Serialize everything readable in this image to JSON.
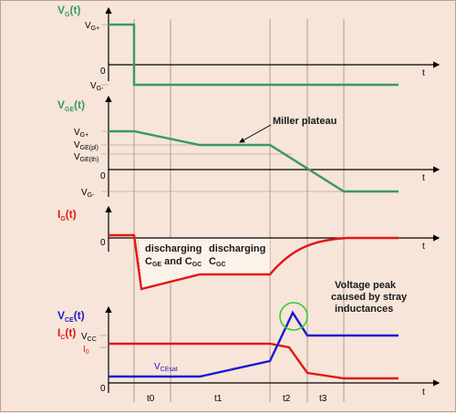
{
  "colors": {
    "background": "#f6e5d8",
    "green": "#3a9a5c",
    "red": "#e01818",
    "blue": "#1a1ad0",
    "axis": "#000000",
    "guide": "#a88a78",
    "shade": "#fbf2ea",
    "peak_circle": "#33cc33"
  },
  "panel_vg": {
    "title": "V",
    "title_sub": "G",
    "title_tail": "(t)",
    "vg_plus": "V",
    "vg_plus_sub": "G+",
    "vg_minus": "V",
    "vg_minus_sub": "G-",
    "origin": "0",
    "t_label": "t"
  },
  "panel_vge": {
    "title": "V",
    "title_sub": "GE",
    "title_tail": "(t)",
    "vg_plus": "V",
    "vg_plus_sub": "G+",
    "vge_pl": "V",
    "vge_pl_sub": "GE(pl)",
    "vge_th": "V",
    "vge_th_sub": "GE(th)",
    "vg_minus": "V",
    "vg_minus_sub": "G-",
    "origin": "0",
    "t_label": "t",
    "miller_label": "Miller plateau"
  },
  "panel_ig": {
    "title": "I",
    "title_sub": "G",
    "title_tail": "(t)",
    "origin": "0",
    "t_label": "t",
    "discharge1_line1": "discharging",
    "discharge1_line2a": "C",
    "discharge1_line2a_sub": "GE",
    "discharge1_line2b": " and C",
    "discharge1_line2b_sub": "GC",
    "discharge2_line1": "discharging",
    "discharge2_line2": "C",
    "discharge2_line2_sub": "GC"
  },
  "panel_vce": {
    "title1": "V",
    "title1_sub": "CE",
    "title1_tail": "(t)",
    "title2": "I",
    "title2_sub": "C",
    "title2_tail": "(t)",
    "vcc": "V",
    "vcc_sub": "CC",
    "i0": "I",
    "i0_sub": "0",
    "vcesat": "V",
    "vcesat_sub": "CEsat",
    "origin": "0",
    "t_label": "t",
    "peak_line1": "Voltage peak",
    "peak_line2": "caused by stray",
    "peak_line3": "inductances"
  },
  "intervals": [
    "t0",
    "t1",
    "t2",
    "t3"
  ]
}
